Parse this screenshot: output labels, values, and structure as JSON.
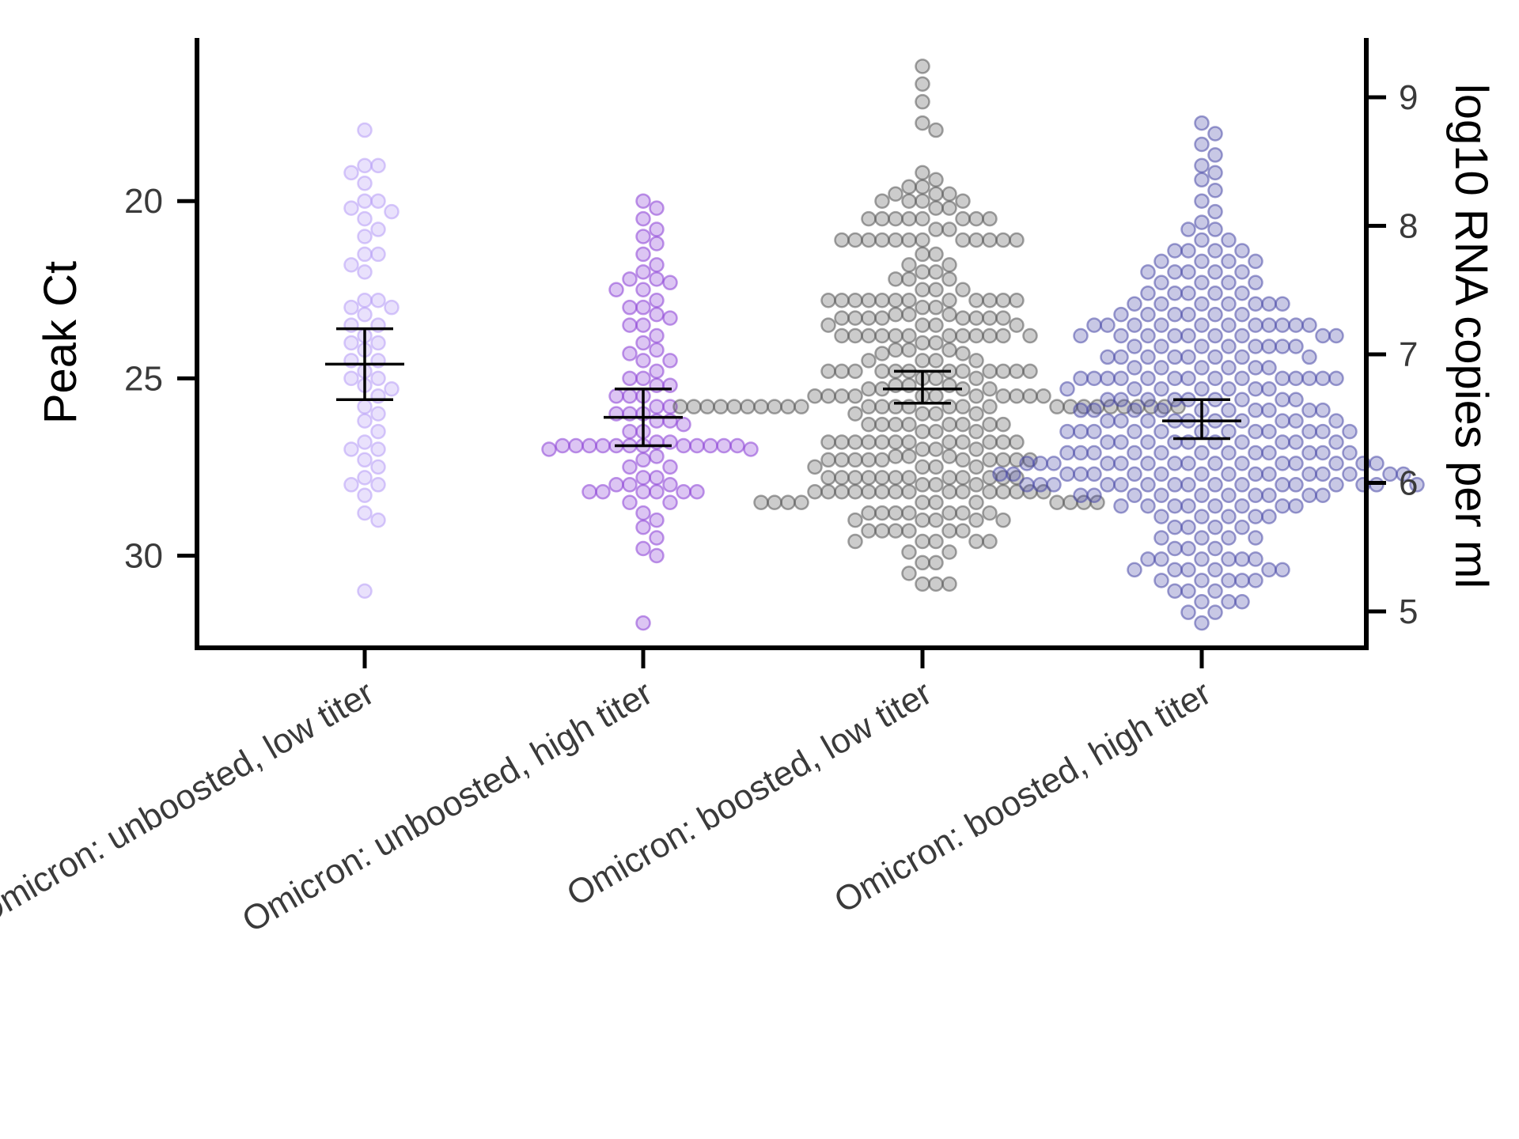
{
  "chart_data": {
    "type": "scatter",
    "subtype": "beeswarm with mean and error bars",
    "title": "",
    "ylabel": "Peak Ct",
    "y2label": "log10 RNA copies per ml",
    "ylim": [
      32.6,
      15.4
    ],
    "y_reversed": true,
    "yticks": [
      20,
      25,
      30
    ],
    "y2ticks": [
      5,
      6,
      7,
      8,
      9
    ],
    "y2_relation": "log10 RNA copies per ml decreases as Ct increases (secondary scale)",
    "categories": [
      "Omicron: unboosted, low titer",
      "Omicron: unboosted, high titer",
      "Omicron: boosted, low titer",
      "Omicron: boosted, high titer"
    ],
    "groups": [
      {
        "category": "Omicron: unboosted, low titer",
        "color": "#b79cf5",
        "mean": 24.6,
        "ci_low": 23.6,
        "ci_high": 25.6,
        "points": [
          18.0,
          19.0,
          19.0,
          19.2,
          19.5,
          20.0,
          20.0,
          20.2,
          20.3,
          20.5,
          20.8,
          21.0,
          21.5,
          21.5,
          21.8,
          22.0,
          22.8,
          22.8,
          23.0,
          23.0,
          23.2,
          23.5,
          23.5,
          23.8,
          24.0,
          24.0,
          24.2,
          24.5,
          24.5,
          24.8,
          25.0,
          25.0,
          25.2,
          25.3,
          25.5,
          25.8,
          26.0,
          26.2,
          26.5,
          26.8,
          27.0,
          27.0,
          27.3,
          27.5,
          27.8,
          28.0,
          28.0,
          28.3,
          28.8,
          29.0,
          31.0
        ]
      },
      {
        "category": "Omicron: unboosted, high titer",
        "color": "#8a3fd6",
        "mean": 26.1,
        "ci_low": 25.3,
        "ci_high": 26.9,
        "points": [
          20.0,
          20.2,
          20.5,
          20.8,
          21.0,
          21.2,
          21.5,
          21.8,
          22.0,
          22.2,
          22.2,
          22.3,
          22.5,
          22.5,
          22.8,
          23.0,
          23.0,
          23.2,
          23.3,
          23.5,
          23.5,
          23.8,
          24.0,
          24.2,
          24.3,
          24.5,
          24.5,
          24.8,
          25.0,
          25.0,
          25.2,
          25.2,
          25.5,
          25.5,
          25.5,
          25.8,
          25.8,
          26.0,
          26.0,
          26.0,
          26.2,
          26.2,
          26.3,
          26.5,
          26.5,
          26.8,
          26.8,
          26.9,
          26.9,
          26.9,
          26.9,
          26.9,
          26.9,
          26.9,
          26.9,
          26.9,
          26.9,
          26.9,
          26.9,
          27.0,
          27.0,
          27.2,
          27.3,
          27.5,
          27.5,
          27.8,
          27.8,
          28.0,
          28.0,
          28.0,
          28.2,
          28.2,
          28.2,
          28.2,
          28.2,
          28.2,
          28.5,
          28.5,
          28.8,
          29.0,
          29.2,
          29.5,
          29.8,
          30.0,
          31.9
        ]
      },
      {
        "category": "Omicron: boosted, low titer",
        "color": "#555555",
        "mean": 25.3,
        "ci_low": 24.8,
        "ci_high": 25.7,
        "points": [
          16.2,
          16.7,
          17.2,
          17.8,
          18.0,
          19.2,
          19.4,
          19.6,
          19.6,
          19.8,
          19.8,
          19.8,
          20.0,
          20.0,
          20.0,
          20.0,
          20.2,
          20.2,
          20.5,
          20.5,
          20.5,
          20.5,
          20.5,
          20.5,
          20.5,
          20.5,
          20.8,
          20.8,
          21.1,
          21.1,
          21.1,
          21.1,
          21.1,
          21.1,
          21.1,
          21.1,
          21.1,
          21.1,
          21.1,
          21.1,
          21.5,
          21.5,
          21.8,
          21.8,
          22.0,
          22.0,
          22.2,
          22.2,
          22.2,
          22.5,
          22.5,
          22.5,
          22.8,
          22.8,
          22.8,
          22.8,
          22.8,
          22.8,
          22.8,
          22.8,
          22.8,
          22.8,
          22.8,
          22.8,
          23.0,
          23.0,
          23.2,
          23.2,
          23.2,
          23.3,
          23.3,
          23.3,
          23.3,
          23.3,
          23.3,
          23.3,
          23.3,
          23.5,
          23.5,
          23.5,
          23.5,
          23.8,
          23.8,
          23.8,
          23.8,
          23.8,
          23.8,
          23.8,
          23.8,
          23.8,
          23.8,
          23.8,
          23.8,
          24.0,
          24.0,
          24.2,
          24.2,
          24.2,
          24.3,
          24.3,
          24.5,
          24.5,
          24.5,
          24.5,
          24.8,
          24.8,
          24.8,
          24.8,
          24.8,
          24.8,
          24.8,
          24.8,
          24.8,
          24.8,
          24.8,
          24.8,
          25.0,
          25.0,
          25.0,
          25.2,
          25.2,
          25.2,
          25.3,
          25.3,
          25.3,
          25.3,
          25.5,
          25.5,
          25.5,
          25.5,
          25.5,
          25.5,
          25.5,
          25.5,
          25.5,
          25.5,
          25.5,
          25.8,
          25.8,
          25.8,
          25.8,
          25.8,
          25.8,
          25.8,
          25.8,
          25.8,
          25.8,
          25.8,
          25.8,
          25.8,
          25.8,
          25.8,
          25.8,
          25.8,
          25.8,
          25.8,
          25.8,
          25.8,
          25.8,
          25.8,
          25.8,
          25.8,
          25.8,
          25.8,
          26.0,
          26.0,
          26.0,
          26.0,
          26.3,
          26.3,
          26.3,
          26.3,
          26.3,
          26.3,
          26.3,
          26.3,
          26.5,
          26.5,
          26.5,
          26.8,
          26.8,
          26.8,
          26.8,
          26.8,
          26.8,
          26.8,
          26.8,
          26.8,
          26.8,
          26.8,
          26.8,
          27.0,
          27.0,
          27.0,
          27.2,
          27.2,
          27.2,
          27.3,
          27.3,
          27.3,
          27.3,
          27.3,
          27.3,
          27.3,
          27.3,
          27.3,
          27.3,
          27.5,
          27.5,
          27.5,
          27.5,
          27.8,
          27.8,
          27.8,
          27.8,
          27.8,
          27.8,
          27.8,
          27.8,
          27.8,
          27.8,
          27.8,
          27.8,
          28.0,
          28.0,
          28.0,
          28.2,
          28.2,
          28.2,
          28.2,
          28.2,
          28.2,
          28.2,
          28.2,
          28.2,
          28.2,
          28.2,
          28.2,
          28.2,
          28.2,
          28.2,
          28.5,
          28.5,
          28.5,
          28.5,
          28.5,
          28.5,
          28.5,
          28.5,
          28.5,
          28.5,
          28.5,
          28.8,
          28.8,
          28.8,
          28.8,
          28.8,
          28.8,
          28.8,
          29.0,
          29.0,
          29.0,
          29.0,
          29.0,
          29.3,
          29.3,
          29.3,
          29.3,
          29.3,
          29.3,
          29.6,
          29.6,
          29.6,
          29.6,
          29.6,
          29.9,
          29.9,
          30.2,
          30.2,
          30.5,
          30.8,
          30.8,
          30.8
        ]
      },
      {
        "category": "Omicron: boosted, high titer",
        "color": "#4a4aa8",
        "mean": 26.2,
        "ci_low": 25.6,
        "ci_high": 26.7,
        "points": [
          17.8,
          18.1,
          18.4,
          18.7,
          19.0,
          19.2,
          19.4,
          19.7,
          20.0,
          20.3,
          20.6,
          20.8,
          20.8,
          21.1,
          21.1,
          21.4,
          21.4,
          21.4,
          21.4,
          21.7,
          21.7,
          21.7,
          21.7,
          22.0,
          22.0,
          22.0,
          22.0,
          22.0,
          22.3,
          22.3,
          22.3,
          22.3,
          22.6,
          22.6,
          22.6,
          22.6,
          22.6,
          22.9,
          22.9,
          22.9,
          22.9,
          22.9,
          22.9,
          22.9,
          23.2,
          23.2,
          23.2,
          23.2,
          23.2,
          23.2,
          23.5,
          23.5,
          23.5,
          23.5,
          23.5,
          23.5,
          23.5,
          23.5,
          23.5,
          23.5,
          23.5,
          23.8,
          23.8,
          23.8,
          23.8,
          23.8,
          23.8,
          23.8,
          23.8,
          23.8,
          24.1,
          24.1,
          24.1,
          24.1,
          24.1,
          24.1,
          24.1,
          24.1,
          24.4,
          24.4,
          24.4,
          24.4,
          24.4,
          24.4,
          24.4,
          24.4,
          24.7,
          24.7,
          24.7,
          24.7,
          24.7,
          24.7,
          25.0,
          25.0,
          25.0,
          25.0,
          25.0,
          25.0,
          25.0,
          25.0,
          25.0,
          25.0,
          25.0,
          25.0,
          25.0,
          25.0,
          25.3,
          25.3,
          25.3,
          25.3,
          25.3,
          25.3,
          25.3,
          25.6,
          25.6,
          25.6,
          25.6,
          25.6,
          25.6,
          25.6,
          25.6,
          25.6,
          25.9,
          25.9,
          25.9,
          25.9,
          25.9,
          25.9,
          25.9,
          25.9,
          25.9,
          25.9,
          26.2,
          26.2,
          26.2,
          26.2,
          26.2,
          26.2,
          26.2,
          26.2,
          26.2,
          26.2,
          26.5,
          26.5,
          26.5,
          26.5,
          26.5,
          26.5,
          26.5,
          26.5,
          26.5,
          26.5,
          26.5,
          26.5,
          26.8,
          26.8,
          26.8,
          26.8,
          26.8,
          26.8,
          26.8,
          26.8,
          26.8,
          26.8,
          27.1,
          27.1,
          27.1,
          27.1,
          27.1,
          27.1,
          27.1,
          27.1,
          27.1,
          27.1,
          27.1,
          27.1,
          27.4,
          27.4,
          27.4,
          27.4,
          27.4,
          27.4,
          27.4,
          27.4,
          27.4,
          27.4,
          27.4,
          27.4,
          27.4,
          27.4,
          27.4,
          27.7,
          27.7,
          27.7,
          27.7,
          27.7,
          27.7,
          27.7,
          27.7,
          27.7,
          27.7,
          27.7,
          27.7,
          27.7,
          27.7,
          27.7,
          27.7,
          28.0,
          28.0,
          28.0,
          28.0,
          28.0,
          28.0,
          28.0,
          28.0,
          28.0,
          28.0,
          28.0,
          28.0,
          28.0,
          28.0,
          28.0,
          28.0,
          28.3,
          28.3,
          28.3,
          28.3,
          28.3,
          28.3,
          28.3,
          28.3,
          28.3,
          28.3,
          28.6,
          28.6,
          28.6,
          28.6,
          28.6,
          28.6,
          28.6,
          28.6,
          28.9,
          28.9,
          28.9,
          28.9,
          28.9,
          29.2,
          29.2,
          29.2,
          29.2,
          29.5,
          29.5,
          29.5,
          29.5,
          29.8,
          29.8,
          29.8,
          30.1,
          30.1,
          30.1,
          30.1,
          30.1,
          30.1,
          30.4,
          30.4,
          30.4,
          30.4,
          30.4,
          30.4,
          30.7,
          30.7,
          30.7,
          30.7,
          30.7,
          31.0,
          31.0,
          31.0,
          31.3,
          31.3,
          31.3,
          31.6,
          31.6,
          31.9
        ]
      }
    ],
    "grid": false,
    "legend": "none"
  }
}
